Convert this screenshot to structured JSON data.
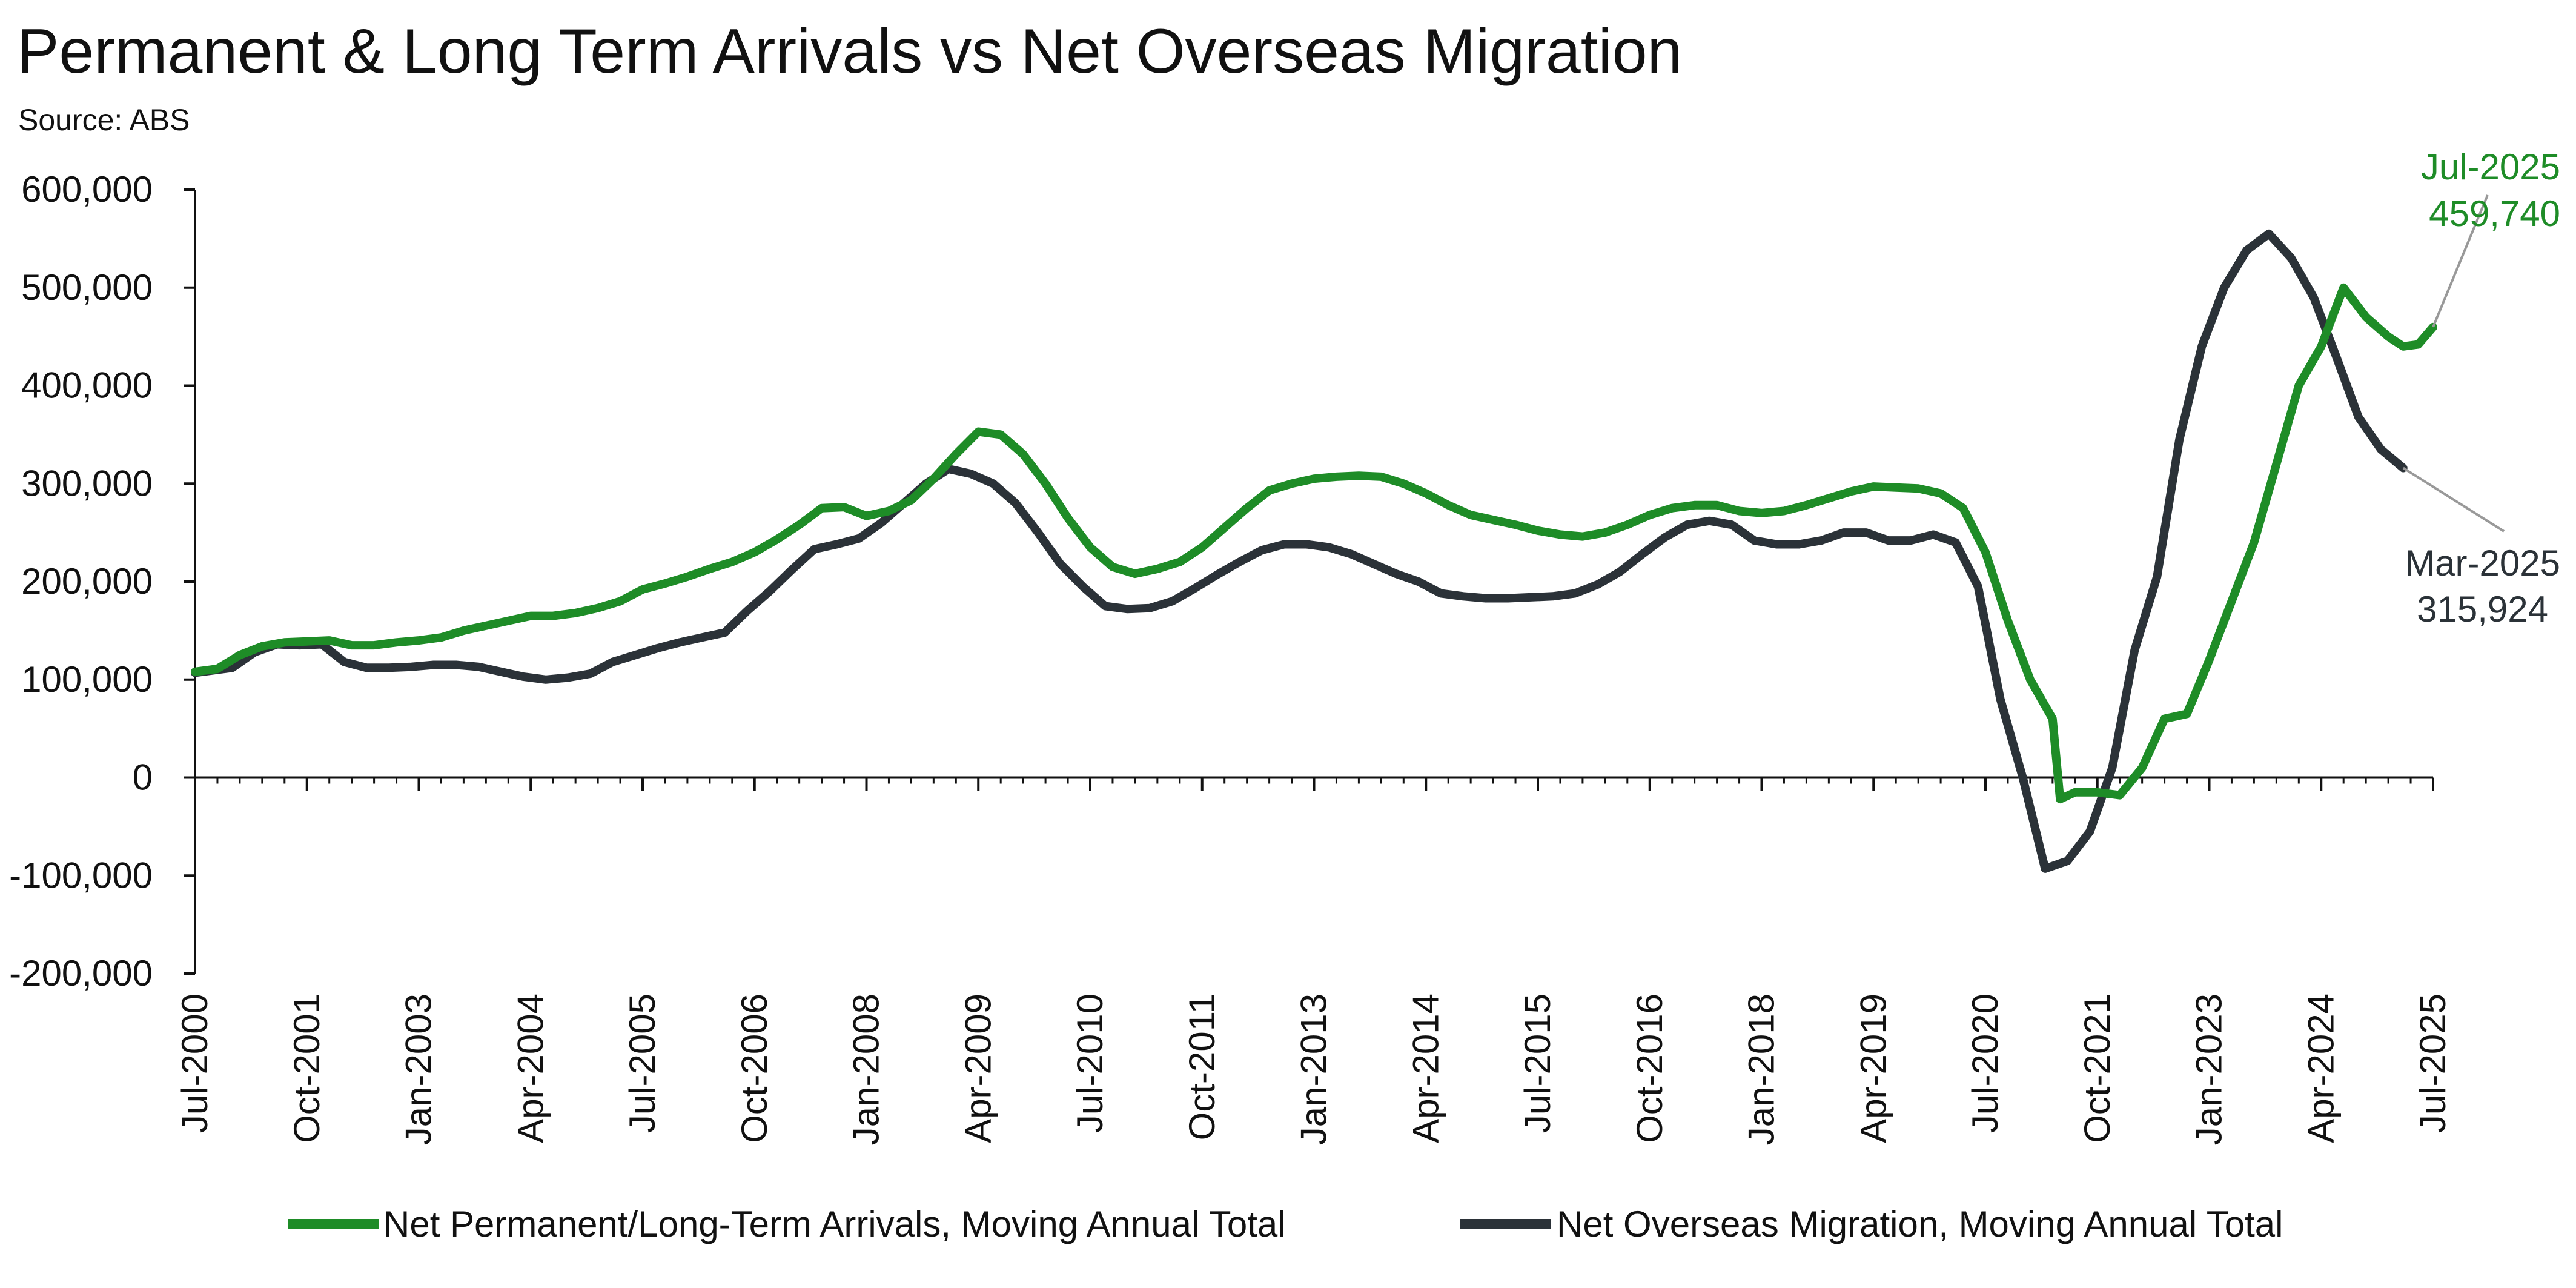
{
  "chart_data": {
    "type": "line",
    "title": "Permanent & Long Term Arrivals vs Net Overseas Migration",
    "subtitle": "Source: ABS",
    "xlabel": "",
    "ylabel": "",
    "ylim": [
      -200000,
      600000
    ],
    "yticks": [
      600000,
      500000,
      400000,
      300000,
      200000,
      100000,
      0,
      -100000,
      -200000
    ],
    "ytick_labels": [
      "600,000",
      "500,000",
      "400,000",
      "300,000",
      "200,000",
      "100,000",
      "0",
      "-100,000",
      "-200,000"
    ],
    "xlim": [
      "2000-07",
      "2025-07"
    ],
    "xticks": [
      "2000-07",
      "2001-10",
      "2003-01",
      "2004-04",
      "2005-07",
      "2006-10",
      "2008-01",
      "2009-04",
      "2010-07",
      "2011-10",
      "2013-01",
      "2014-04",
      "2015-07",
      "2016-10",
      "2018-01",
      "2019-04",
      "2020-07",
      "2021-10",
      "2023-01",
      "2024-04",
      "2025-07"
    ],
    "xtick_labels": [
      "Jul-2000",
      "Oct-2001",
      "Jan-2003",
      "Apr-2004",
      "Jul-2005",
      "Oct-2006",
      "Jan-2008",
      "Apr-2009",
      "Jul-2010",
      "Oct-2011",
      "Jan-2013",
      "Apr-2014",
      "Jul-2015",
      "Oct-2016",
      "Jan-2018",
      "Apr-2019",
      "Jul-2020",
      "Oct-2021",
      "Jan-2023",
      "Apr-2024",
      "Jul-2025"
    ],
    "grid": false,
    "legend_position": "bottom",
    "series": [
      {
        "name": "Net Permanent/Long-Term Arrivals, Moving Annual Total",
        "color": "#1e8c27",
        "points": [
          [
            "2000-07",
            108000
          ],
          [
            "2000-10",
            111000
          ],
          [
            "2001-01",
            125000
          ],
          [
            "2001-04",
            134000
          ],
          [
            "2001-07",
            138000
          ],
          [
            "2001-10",
            139000
          ],
          [
            "2002-01",
            140000
          ],
          [
            "2002-04",
            135000
          ],
          [
            "2002-07",
            135000
          ],
          [
            "2002-10",
            138000
          ],
          [
            "2003-01",
            140000
          ],
          [
            "2003-04",
            143000
          ],
          [
            "2003-07",
            150000
          ],
          [
            "2003-10",
            155000
          ],
          [
            "2004-01",
            160000
          ],
          [
            "2004-04",
            165000
          ],
          [
            "2004-07",
            165000
          ],
          [
            "2004-10",
            168000
          ],
          [
            "2005-01",
            173000
          ],
          [
            "2005-04",
            180000
          ],
          [
            "2005-07",
            192000
          ],
          [
            "2005-10",
            198000
          ],
          [
            "2006-01",
            205000
          ],
          [
            "2006-04",
            213000
          ],
          [
            "2006-07",
            220000
          ],
          [
            "2006-10",
            230000
          ],
          [
            "2007-01",
            243000
          ],
          [
            "2007-04",
            258000
          ],
          [
            "2007-07",
            275000
          ],
          [
            "2007-10",
            276000
          ],
          [
            "2008-01",
            267000
          ],
          [
            "2008-04",
            272000
          ],
          [
            "2008-07",
            283000
          ],
          [
            "2008-10",
            305000
          ],
          [
            "2009-01",
            330000
          ],
          [
            "2009-04",
            353000
          ],
          [
            "2009-07",
            350000
          ],
          [
            "2009-10",
            330000
          ],
          [
            "2010-01",
            300000
          ],
          [
            "2010-04",
            265000
          ],
          [
            "2010-07",
            235000
          ],
          [
            "2010-10",
            215000
          ],
          [
            "2011-01",
            208000
          ],
          [
            "2011-04",
            213000
          ],
          [
            "2011-07",
            220000
          ],
          [
            "2011-10",
            235000
          ],
          [
            "2012-01",
            255000
          ],
          [
            "2012-04",
            275000
          ],
          [
            "2012-07",
            293000
          ],
          [
            "2012-10",
            300000
          ],
          [
            "2013-01",
            305000
          ],
          [
            "2013-04",
            307000
          ],
          [
            "2013-07",
            308000
          ],
          [
            "2013-10",
            307000
          ],
          [
            "2014-01",
            300000
          ],
          [
            "2014-04",
            290000
          ],
          [
            "2014-07",
            278000
          ],
          [
            "2014-10",
            268000
          ],
          [
            "2015-01",
            263000
          ],
          [
            "2015-04",
            258000
          ],
          [
            "2015-07",
            252000
          ],
          [
            "2015-10",
            248000
          ],
          [
            "2016-01",
            246000
          ],
          [
            "2016-04",
            250000
          ],
          [
            "2016-07",
            258000
          ],
          [
            "2016-10",
            268000
          ],
          [
            "2017-01",
            275000
          ],
          [
            "2017-04",
            278000
          ],
          [
            "2017-07",
            278000
          ],
          [
            "2017-10",
            272000
          ],
          [
            "2018-01",
            270000
          ],
          [
            "2018-04",
            272000
          ],
          [
            "2018-07",
            278000
          ],
          [
            "2018-10",
            285000
          ],
          [
            "2019-01",
            292000
          ],
          [
            "2019-04",
            297000
          ],
          [
            "2019-07",
            296000
          ],
          [
            "2019-10",
            295000
          ],
          [
            "2020-01",
            290000
          ],
          [
            "2020-04",
            275000
          ],
          [
            "2020-07",
            230000
          ],
          [
            "2020-10",
            160000
          ],
          [
            "2021-01",
            100000
          ],
          [
            "2021-04",
            60000
          ],
          [
            "2021-05",
            -22000
          ],
          [
            "2021-07",
            -15000
          ],
          [
            "2021-10",
            -15000
          ],
          [
            "2022-01",
            -18000
          ],
          [
            "2022-04",
            10000
          ],
          [
            "2022-07",
            60000
          ],
          [
            "2022-10",
            65000
          ],
          [
            "2023-01",
            120000
          ],
          [
            "2023-04",
            180000
          ],
          [
            "2023-07",
            240000
          ],
          [
            "2023-10",
            320000
          ],
          [
            "2024-01",
            400000
          ],
          [
            "2024-04",
            440000
          ],
          [
            "2024-07",
            500000
          ],
          [
            "2024-10",
            470000
          ],
          [
            "2025-01",
            450000
          ],
          [
            "2025-03",
            440000
          ],
          [
            "2025-05",
            442000
          ],
          [
            "2025-07",
            459740
          ]
        ]
      },
      {
        "name": "Net Overseas Migration, Moving Annual Total",
        "color": "#2b3238",
        "points": [
          [
            "2000-07",
            107000
          ],
          [
            "2000-12",
            112000
          ],
          [
            "2001-03",
            128000
          ],
          [
            "2001-06",
            136000
          ],
          [
            "2001-09",
            135000
          ],
          [
            "2001-12",
            136000
          ],
          [
            "2002-03",
            118000
          ],
          [
            "2002-06",
            112000
          ],
          [
            "2002-09",
            112000
          ],
          [
            "2002-12",
            113000
          ],
          [
            "2003-03",
            115000
          ],
          [
            "2003-06",
            115000
          ],
          [
            "2003-09",
            113000
          ],
          [
            "2003-12",
            108000
          ],
          [
            "2004-03",
            103000
          ],
          [
            "2004-06",
            100000
          ],
          [
            "2004-09",
            102000
          ],
          [
            "2004-12",
            106000
          ],
          [
            "2005-03",
            118000
          ],
          [
            "2005-06",
            125000
          ],
          [
            "2005-09",
            132000
          ],
          [
            "2005-12",
            138000
          ],
          [
            "2006-03",
            143000
          ],
          [
            "2006-06",
            148000
          ],
          [
            "2006-09",
            170000
          ],
          [
            "2006-12",
            190000
          ],
          [
            "2007-03",
            212000
          ],
          [
            "2007-06",
            233000
          ],
          [
            "2007-09",
            238000
          ],
          [
            "2007-12",
            244000
          ],
          [
            "2008-03",
            260000
          ],
          [
            "2008-06",
            280000
          ],
          [
            "2008-09",
            300000
          ],
          [
            "2008-12",
            315000
          ],
          [
            "2009-03",
            310000
          ],
          [
            "2009-06",
            300000
          ],
          [
            "2009-09",
            280000
          ],
          [
            "2009-12",
            250000
          ],
          [
            "2010-03",
            218000
          ],
          [
            "2010-06",
            195000
          ],
          [
            "2010-09",
            175000
          ],
          [
            "2010-12",
            172000
          ],
          [
            "2011-03",
            173000
          ],
          [
            "2011-06",
            180000
          ],
          [
            "2011-09",
            193000
          ],
          [
            "2011-12",
            207000
          ],
          [
            "2012-03",
            220000
          ],
          [
            "2012-06",
            232000
          ],
          [
            "2012-09",
            238000
          ],
          [
            "2012-12",
            238000
          ],
          [
            "2013-03",
            235000
          ],
          [
            "2013-06",
            228000
          ],
          [
            "2013-09",
            218000
          ],
          [
            "2013-12",
            208000
          ],
          [
            "2014-03",
            200000
          ],
          [
            "2014-06",
            188000
          ],
          [
            "2014-09",
            185000
          ],
          [
            "2014-12",
            183000
          ],
          [
            "2015-03",
            183000
          ],
          [
            "2015-06",
            184000
          ],
          [
            "2015-09",
            185000
          ],
          [
            "2015-12",
            188000
          ],
          [
            "2016-03",
            197000
          ],
          [
            "2016-06",
            210000
          ],
          [
            "2016-09",
            228000
          ],
          [
            "2016-12",
            245000
          ],
          [
            "2017-03",
            258000
          ],
          [
            "2017-06",
            262000
          ],
          [
            "2017-09",
            258000
          ],
          [
            "2017-12",
            242000
          ],
          [
            "2018-03",
            238000
          ],
          [
            "2018-06",
            238000
          ],
          [
            "2018-09",
            242000
          ],
          [
            "2018-12",
            250000
          ],
          [
            "2019-03",
            250000
          ],
          [
            "2019-06",
            242000
          ],
          [
            "2019-09",
            242000
          ],
          [
            "2019-12",
            248000
          ],
          [
            "2020-03",
            240000
          ],
          [
            "2020-06",
            195000
          ],
          [
            "2020-09",
            80000
          ],
          [
            "2020-12",
            0
          ],
          [
            "2021-03",
            -93000
          ],
          [
            "2021-06",
            -85000
          ],
          [
            "2021-09",
            -55000
          ],
          [
            "2021-12",
            10000
          ],
          [
            "2022-03",
            130000
          ],
          [
            "2022-06",
            205000
          ],
          [
            "2022-09",
            345000
          ],
          [
            "2022-12",
            440000
          ],
          [
            "2023-03",
            500000
          ],
          [
            "2023-06",
            538000
          ],
          [
            "2023-09",
            555000
          ],
          [
            "2023-12",
            530000
          ],
          [
            "2024-03",
            490000
          ],
          [
            "2024-06",
            430000
          ],
          [
            "2024-09",
            368000
          ],
          [
            "2024-12",
            335000
          ],
          [
            "2025-03",
            315924
          ]
        ]
      }
    ],
    "annotations": [
      {
        "series": 0,
        "at": "2025-07",
        "value": 459740,
        "label_date": "Jul-2025",
        "label_value": "459,740",
        "color": "#1e8c27"
      },
      {
        "series": 1,
        "at": "2025-03",
        "value": 315924,
        "label_date": "Mar-2025",
        "label_value": "315,924",
        "color": "#2b3238"
      }
    ]
  }
}
